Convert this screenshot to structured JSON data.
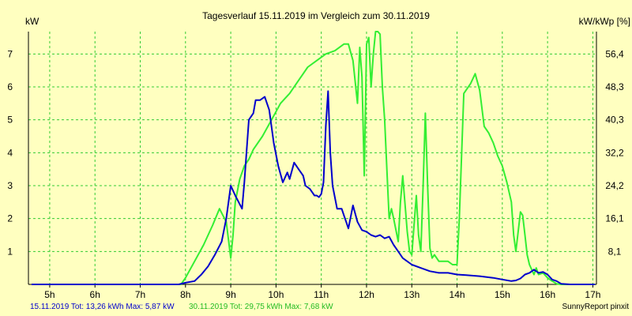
{
  "colors": {
    "background": "#FFFFC0",
    "grid": "#33CC33",
    "series_a": "#0000CC",
    "series_b": "#33EE33",
    "text": "#000000"
  },
  "footer": {
    "series_a_stats": "15.11.2019 Tot: 13,26 kWh Max: 5,87 kW",
    "series_b_stats": "30.11.2019 Tot: 29,75 kWh Max: 7,68 kW",
    "brand": "SunnyReport pinxit"
  },
  "chart_data": {
    "type": "line",
    "title": "Tagesverlauf 15.11.2019 im Vergleich zum 30.11.2019",
    "ylabel": "kW",
    "y2label": "kW/kWp [%]",
    "xlabel": "",
    "xlim": [
      4.53,
      17.08
    ],
    "ylim": [
      0,
      7.68
    ],
    "y2lim": [
      0,
      61.4
    ],
    "grid": true,
    "legend": "none",
    "x_ticks": [
      "5h",
      "6h",
      "7h",
      "8h",
      "9h",
      "10h",
      "11h",
      "12h",
      "13h",
      "14h",
      "15h",
      "16h",
      "17h"
    ],
    "x_tick_values": [
      5,
      6,
      7,
      8,
      9,
      10,
      11,
      12,
      13,
      14,
      15,
      16,
      17
    ],
    "y_ticks": [
      "1",
      "2",
      "3",
      "4",
      "5",
      "6",
      "7"
    ],
    "y_tick_values": [
      1,
      2,
      3,
      4,
      5,
      6,
      7
    ],
    "y2_ticks": [
      "8,1",
      "16,1",
      "24,2",
      "32,2",
      "40,3",
      "48,3",
      "56,4"
    ],
    "y2_tick_values": [
      1,
      2,
      3,
      4,
      5,
      6,
      7
    ],
    "series": [
      {
        "name": "15.11.2019",
        "color": "#0000CC",
        "x": [
          4.6,
          7.85,
          8.0,
          8.2,
          8.35,
          8.5,
          8.65,
          8.8,
          8.9,
          9.0,
          9.1,
          9.25,
          9.3,
          9.4,
          9.5,
          9.55,
          9.65,
          9.75,
          9.85,
          9.95,
          10.05,
          10.15,
          10.25,
          10.3,
          10.4,
          10.5,
          10.6,
          10.65,
          10.75,
          10.85,
          10.9,
          10.95,
          11.0,
          11.05,
          11.1,
          11.15,
          11.2,
          11.25,
          11.35,
          11.45,
          11.5,
          11.55,
          11.6,
          11.7,
          11.8,
          11.9,
          12.0,
          12.1,
          12.2,
          12.3,
          12.4,
          12.5,
          12.6,
          12.7,
          12.8,
          12.9,
          13.0,
          13.2,
          13.4,
          13.6,
          13.8,
          14.0,
          14.2,
          14.5,
          14.8,
          15.0,
          15.2,
          15.3,
          15.4,
          15.5,
          15.6,
          15.7,
          15.8,
          15.9,
          16.0,
          16.1,
          16.2,
          16.3,
          16.5,
          17.05
        ],
        "values": [
          0.0,
          0.0,
          0.05,
          0.1,
          0.3,
          0.55,
          0.9,
          1.3,
          2.0,
          3.0,
          2.7,
          2.3,
          3.1,
          5.0,
          5.2,
          5.6,
          5.6,
          5.7,
          5.3,
          4.3,
          3.6,
          3.1,
          3.4,
          3.2,
          3.7,
          3.5,
          3.3,
          3.0,
          2.9,
          2.7,
          2.7,
          2.65,
          2.75,
          3.1,
          4.8,
          5.87,
          4.0,
          3.0,
          2.3,
          2.3,
          2.1,
          1.9,
          1.7,
          2.4,
          1.9,
          1.65,
          1.6,
          1.5,
          1.45,
          1.5,
          1.4,
          1.45,
          1.2,
          1.0,
          0.8,
          0.7,
          0.6,
          0.5,
          0.4,
          0.35,
          0.35,
          0.3,
          0.28,
          0.25,
          0.2,
          0.15,
          0.1,
          0.12,
          0.18,
          0.3,
          0.35,
          0.45,
          0.35,
          0.38,
          0.3,
          0.15,
          0.1,
          0.02,
          0.0,
          0.0
        ]
      },
      {
        "name": "30.11.2019",
        "color": "#33EE33",
        "x": [
          4.6,
          7.9,
          8.0,
          8.2,
          8.4,
          8.6,
          8.75,
          8.9,
          9.0,
          9.05,
          9.1,
          9.2,
          9.3,
          9.4,
          9.5,
          9.7,
          9.9,
          10.1,
          10.3,
          10.5,
          10.7,
          10.9,
          11.1,
          11.3,
          11.5,
          11.6,
          11.7,
          11.8,
          11.85,
          11.9,
          11.95,
          12.0,
          12.05,
          12.1,
          12.15,
          12.2,
          12.25,
          12.3,
          12.35,
          12.4,
          12.45,
          12.5,
          12.55,
          12.6,
          12.7,
          12.75,
          12.8,
          12.9,
          12.95,
          13.0,
          13.05,
          13.1,
          13.15,
          13.2,
          13.25,
          13.3,
          13.35,
          13.4,
          13.45,
          13.5,
          13.6,
          13.7,
          13.8,
          13.9,
          14.0,
          14.05,
          14.15,
          14.3,
          14.4,
          14.5,
          14.6,
          14.7,
          14.8,
          14.9,
          15.0,
          15.1,
          15.2,
          15.25,
          15.3,
          15.4,
          15.45,
          15.5,
          15.55,
          15.6,
          15.7,
          15.75,
          15.8,
          15.9,
          16.0,
          16.1,
          16.2,
          16.3,
          17.05
        ],
        "values": [
          0.0,
          0.0,
          0.2,
          0.7,
          1.2,
          1.8,
          2.3,
          1.9,
          0.8,
          1.5,
          2.5,
          3.2,
          3.6,
          3.8,
          4.1,
          4.5,
          5.0,
          5.5,
          5.8,
          6.2,
          6.6,
          6.8,
          7.0,
          7.1,
          7.3,
          7.3,
          6.8,
          5.5,
          7.2,
          6.3,
          3.3,
          7.3,
          7.5,
          6.0,
          7.0,
          7.68,
          7.68,
          7.6,
          6.0,
          5.0,
          3.5,
          2.0,
          2.3,
          2.0,
          1.3,
          2.5,
          3.3,
          1.6,
          1.0,
          0.9,
          1.8,
          2.7,
          1.5,
          1.0,
          3.0,
          5.2,
          3.0,
          1.1,
          0.8,
          0.9,
          0.7,
          0.7,
          0.7,
          0.6,
          0.6,
          2.0,
          5.8,
          6.1,
          6.4,
          5.9,
          4.8,
          4.6,
          4.3,
          3.9,
          3.6,
          3.1,
          2.5,
          1.5,
          1.0,
          2.2,
          2.1,
          1.5,
          0.9,
          0.6,
          0.3,
          0.5,
          0.3,
          0.35,
          0.2,
          0.1,
          0.02,
          0.0,
          0.0
        ]
      }
    ]
  }
}
